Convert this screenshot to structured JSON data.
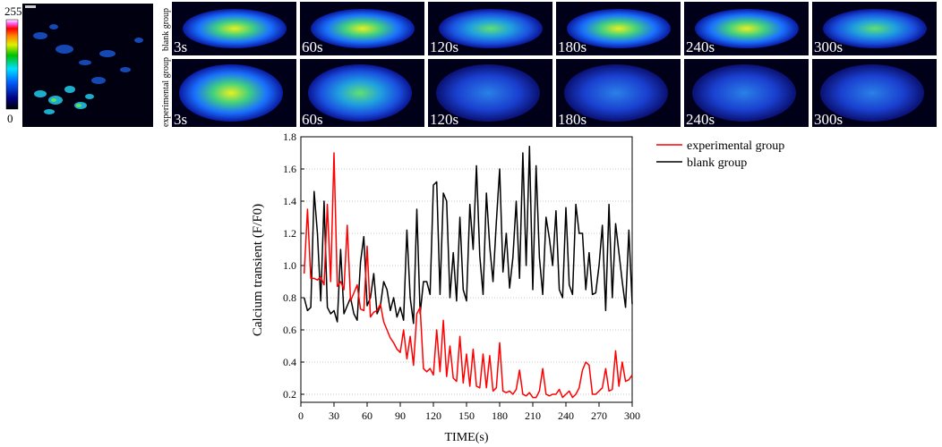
{
  "figure": {
    "scale_bar": {
      "max_label": "255",
      "min_label": "0"
    },
    "row_labels": {
      "blank": "blank group",
      "experimental": "experimental group"
    },
    "time_labels": [
      "3s",
      "60s",
      "120s",
      "180s",
      "240s",
      "300s"
    ]
  },
  "colors": {
    "experimental": "#ff0000",
    "blank": "#000000",
    "panel_border": "#ffffff",
    "grid": "#c8c8c8"
  },
  "chart_data": {
    "type": "line",
    "title": "",
    "xlabel": "TIME(s)",
    "ylabel": "Calcium transient  (F/F0)",
    "xlim": [
      0,
      300
    ],
    "ylim": [
      0.15,
      1.8
    ],
    "xticks": [
      0,
      30,
      60,
      90,
      120,
      150,
      180,
      210,
      240,
      270,
      300
    ],
    "yticks": [
      0.2,
      0.4,
      0.6,
      0.8,
      1.0,
      1.2,
      1.4,
      1.6,
      1.8
    ],
    "ytick_labels": [
      "0.2",
      "0.4",
      "0.6",
      "0.8",
      "1.0",
      "1.2",
      "1.4",
      "1.6",
      "1.8"
    ],
    "grid": "horizontal dotted",
    "legend_position": "top-right outside",
    "series": [
      {
        "name": "experimental group",
        "color": "#ff0000",
        "x": [
          3,
          6,
          9,
          12,
          15,
          18,
          21,
          24,
          27,
          30,
          33,
          36,
          39,
          42,
          45,
          48,
          51,
          54,
          57,
          60,
          63,
          66,
          69,
          72,
          75,
          78,
          81,
          84,
          87,
          90,
          93,
          96,
          99,
          102,
          105,
          108,
          111,
          114,
          117,
          120,
          123,
          126,
          129,
          132,
          135,
          138,
          141,
          144,
          147,
          150,
          153,
          156,
          159,
          162,
          165,
          168,
          171,
          174,
          177,
          180,
          183,
          186,
          189,
          192,
          195,
          198,
          201,
          204,
          207,
          210,
          213,
          216,
          219,
          222,
          225,
          228,
          231,
          234,
          237,
          240,
          243,
          246,
          249,
          252,
          255,
          258,
          261,
          264,
          267,
          270,
          273,
          276,
          279,
          282,
          285,
          288,
          291,
          294,
          297,
          300
        ],
        "y": [
          0.95,
          1.35,
          0.92,
          0.92,
          0.91,
          0.93,
          0.88,
          1.38,
          0.9,
          1.7,
          0.87,
          0.9,
          0.85,
          1.25,
          0.78,
          0.83,
          0.88,
          0.73,
          0.72,
          1.12,
          0.68,
          0.71,
          0.72,
          0.76,
          0.65,
          0.6,
          0.55,
          0.52,
          0.48,
          0.46,
          0.6,
          0.42,
          0.56,
          0.38,
          0.7,
          0.74,
          0.36,
          0.34,
          0.36,
          0.32,
          0.6,
          0.34,
          0.66,
          0.31,
          0.5,
          0.3,
          0.28,
          0.56,
          0.27,
          0.45,
          0.25,
          0.48,
          0.25,
          0.24,
          0.45,
          0.24,
          0.44,
          0.22,
          0.24,
          0.52,
          0.22,
          0.21,
          0.22,
          0.2,
          0.23,
          0.35,
          0.2,
          0.19,
          0.21,
          0.18,
          0.18,
          0.22,
          0.36,
          0.2,
          0.19,
          0.2,
          0.2,
          0.23,
          0.18,
          0.2,
          0.22,
          0.18,
          0.2,
          0.24,
          0.35,
          0.4,
          0.38,
          0.2,
          0.2,
          0.22,
          0.24,
          0.36,
          0.22,
          0.23,
          0.47,
          0.25,
          0.4,
          0.28,
          0.29,
          0.32
        ]
      },
      {
        "name": "blank group",
        "color": "#000000",
        "x": [
          3,
          6,
          9,
          12,
          15,
          18,
          21,
          24,
          27,
          30,
          33,
          36,
          39,
          42,
          45,
          48,
          51,
          54,
          57,
          60,
          63,
          66,
          69,
          72,
          75,
          78,
          81,
          84,
          87,
          90,
          93,
          96,
          99,
          102,
          105,
          108,
          111,
          114,
          117,
          120,
          123,
          126,
          129,
          132,
          135,
          138,
          141,
          144,
          147,
          150,
          153,
          156,
          159,
          162,
          165,
          168,
          171,
          174,
          177,
          180,
          183,
          186,
          189,
          192,
          195,
          198,
          201,
          204,
          207,
          210,
          213,
          216,
          219,
          222,
          225,
          228,
          231,
          234,
          237,
          240,
          243,
          246,
          249,
          252,
          255,
          258,
          261,
          264,
          267,
          270,
          273,
          276,
          279,
          282,
          285,
          288,
          291,
          294,
          297,
          300
        ],
        "y": [
          0.8,
          0.72,
          0.74,
          1.46,
          1.2,
          0.78,
          1.4,
          0.74,
          0.7,
          0.72,
          0.65,
          1.1,
          0.7,
          0.75,
          0.8,
          0.7,
          0.66,
          1.02,
          1.18,
          0.75,
          0.8,
          0.95,
          0.7,
          0.75,
          0.9,
          0.85,
          0.72,
          0.8,
          0.68,
          0.74,
          0.66,
          1.22,
          0.8,
          0.64,
          1.35,
          0.7,
          0.9,
          0.9,
          0.82,
          1.5,
          1.52,
          0.82,
          1.45,
          1.4,
          0.8,
          1.08,
          0.78,
          1.3,
          0.85,
          0.78,
          1.38,
          1.1,
          1.62,
          1.06,
          0.82,
          1.45,
          1.12,
          0.9,
          1.27,
          1.6,
          0.96,
          1.2,
          0.86,
          1.05,
          1.4,
          0.92,
          1.7,
          1.0,
          1.74,
          0.85,
          1.62,
          1.05,
          0.82,
          1.3,
          1.17,
          1.0,
          1.34,
          0.85,
          0.8,
          1.36,
          0.88,
          0.82,
          1.38,
          1.2,
          1.2,
          0.85,
          1.08,
          0.82,
          0.83,
          1.0,
          1.25,
          0.72,
          1.38,
          0.8,
          1.26,
          1.08,
          0.9,
          0.74,
          1.22,
          0.76
        ]
      }
    ]
  }
}
